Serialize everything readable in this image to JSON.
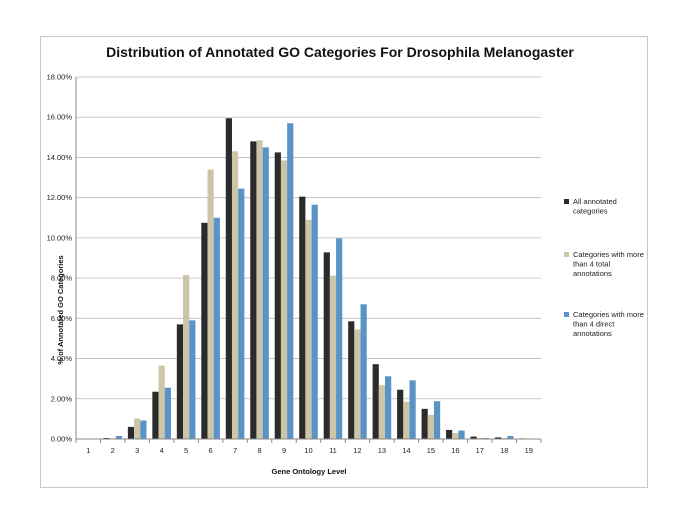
{
  "chart_data": {
    "type": "bar",
    "title": "Distribution of Annotated GO Categories For Drosophila Melanogaster",
    "xlabel": "Gene Ontology Level",
    "ylabel": "% of Annotated GO Categories",
    "ylim": [
      0,
      18
    ],
    "ytick_labels": [
      "0.00%",
      "2.00%",
      "4.00%",
      "6.00%",
      "8.00%",
      "10.00%",
      "12.00%",
      "14.00%",
      "16.00%",
      "18.00%"
    ],
    "categories": [
      "1",
      "2",
      "3",
      "4",
      "5",
      "6",
      "7",
      "8",
      "9",
      "10",
      "11",
      "12",
      "13",
      "14",
      "15",
      "16",
      "17",
      "18",
      "19"
    ],
    "grid": true,
    "legend_position": "right",
    "series": [
      {
        "name": "All annotated categories",
        "color": "#2b2b2b",
        "values": [
          0.0,
          0.05,
          0.6,
          2.35,
          5.7,
          10.75,
          15.95,
          14.8,
          14.25,
          12.05,
          9.28,
          5.85,
          3.72,
          2.45,
          1.5,
          0.45,
          0.12,
          0.08,
          0.03
        ]
      },
      {
        "name": "Categories with more than 4 total annotations",
        "color": "#ccc5a8",
        "values": [
          0.0,
          0.02,
          1.02,
          3.65,
          8.15,
          13.4,
          14.3,
          14.85,
          13.85,
          10.9,
          8.12,
          5.45,
          2.68,
          1.85,
          1.2,
          0.3,
          0.05,
          0.05,
          0.0
        ]
      },
      {
        "name": "Categories with more than 4 direct annotations",
        "color": "#5b93c7",
        "values": [
          0.0,
          0.15,
          0.92,
          2.55,
          5.9,
          11.0,
          12.45,
          14.5,
          15.7,
          11.65,
          9.98,
          6.7,
          3.12,
          2.92,
          1.88,
          0.42,
          0.05,
          0.15,
          0.0
        ]
      }
    ],
    "legend_lines": [
      [
        "All annotated",
        "categories"
      ],
      [
        "Categories with more",
        "than 4 total",
        "annotations"
      ],
      [
        "Categories with more",
        "than 4 direct",
        "annotations"
      ]
    ]
  }
}
